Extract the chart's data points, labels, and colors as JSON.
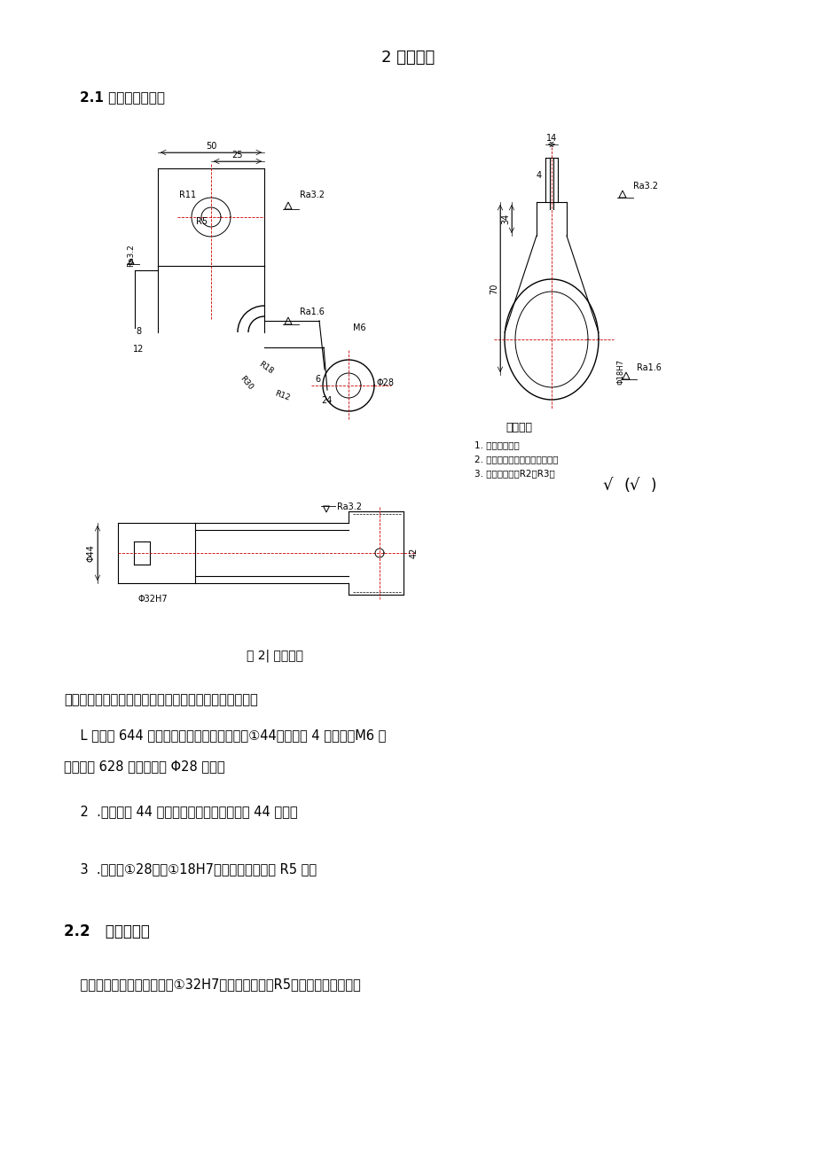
{
  "title": "2 零件分析",
  "section_title": "2.1 零件详细分析图",
  "fig_caption": "图 2| 吊架零件",
  "para1": "从吊架可以看出，此工件共有三组加工面，现分述如下：",
  "para2_1": "    L 以左侧 644 端面为基准加工面，包括右侧①44端面，宽 4 开口槽，M6 螺",
  "para2_2": "纹，前侧 628 端面，后侧 Φ28 端面。",
  "para3": "    2  .以右侧中 44 端面为基准加工面为左侧中 44 端面。",
  "para4": "    3  .以后侧①28面和①18H7孔为基准加工面为 R5 孔。",
  "section2": "2.2   零件的作用",
  "para5": "    支架是起支撑作用的构架。①32H7孔插入吊杆中，R5孔与光杆连接，在其",
  "tech_title": "技术要求",
  "tech1": "1. 无铸造缺陷。",
  "tech2": "2. 加工面去除毛刺、涂敷锈漆。",
  "tech3": "3. 未注铸造圆角R2～R3。",
  "bg_color": "#ffffff",
  "line_color": "#000000",
  "red_color": "#cc0000"
}
